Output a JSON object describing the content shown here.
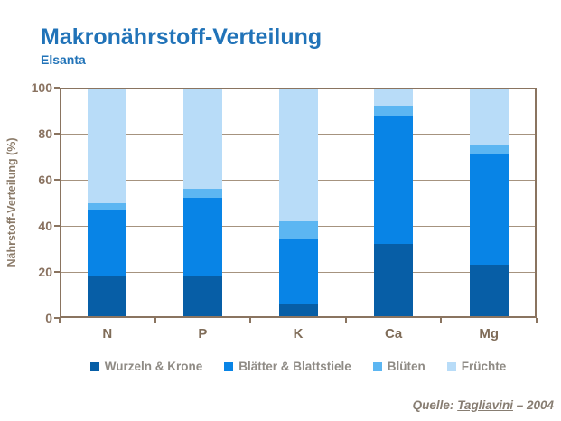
{
  "header": {
    "title": "Makronährstoff-Verteilung",
    "subtitle": "Elsanta"
  },
  "source": {
    "prefix": "Quelle: ",
    "author": "Tagliavini",
    "suffix": " – 2004"
  },
  "chart_data": {
    "type": "bar",
    "stacked": true,
    "percent_stacked": true,
    "categories": [
      "N",
      "P",
      "K",
      "Ca",
      "Mg"
    ],
    "series": [
      {
        "name": "Wurzeln & Krone",
        "color": "#075ea6",
        "values": [
          18,
          18,
          6,
          32,
          23
        ]
      },
      {
        "name": "Blätter & Blattstiele",
        "color": "#0884e6",
        "values": [
          29,
          34,
          28,
          56,
          48
        ]
      },
      {
        "name": "Blüten",
        "color": "#5cb6f2",
        "values": [
          3,
          4,
          8,
          4,
          4
        ]
      },
      {
        "name": "Früchte",
        "color": "#b8dcf8",
        "values": [
          50,
          44,
          58,
          8,
          25
        ]
      }
    ],
    "ylabel": "Nährstoff-Verteilung (%)",
    "xlabel": "",
    "ylim": [
      0,
      100
    ],
    "y_ticks": [
      0,
      20,
      40,
      60,
      80,
      100
    ],
    "grid": true,
    "legend_position": "bottom"
  },
  "colors": {
    "title": "#2173b8",
    "axis_frame": "#8a7460",
    "gridline": "#a6937f",
    "tick_label": "#8a7361",
    "x_label": "#7f6c58",
    "y_title": "#8a7a68",
    "legend_text": "#8f8b85",
    "source_text": "#877d72",
    "background": "#ffffff"
  }
}
